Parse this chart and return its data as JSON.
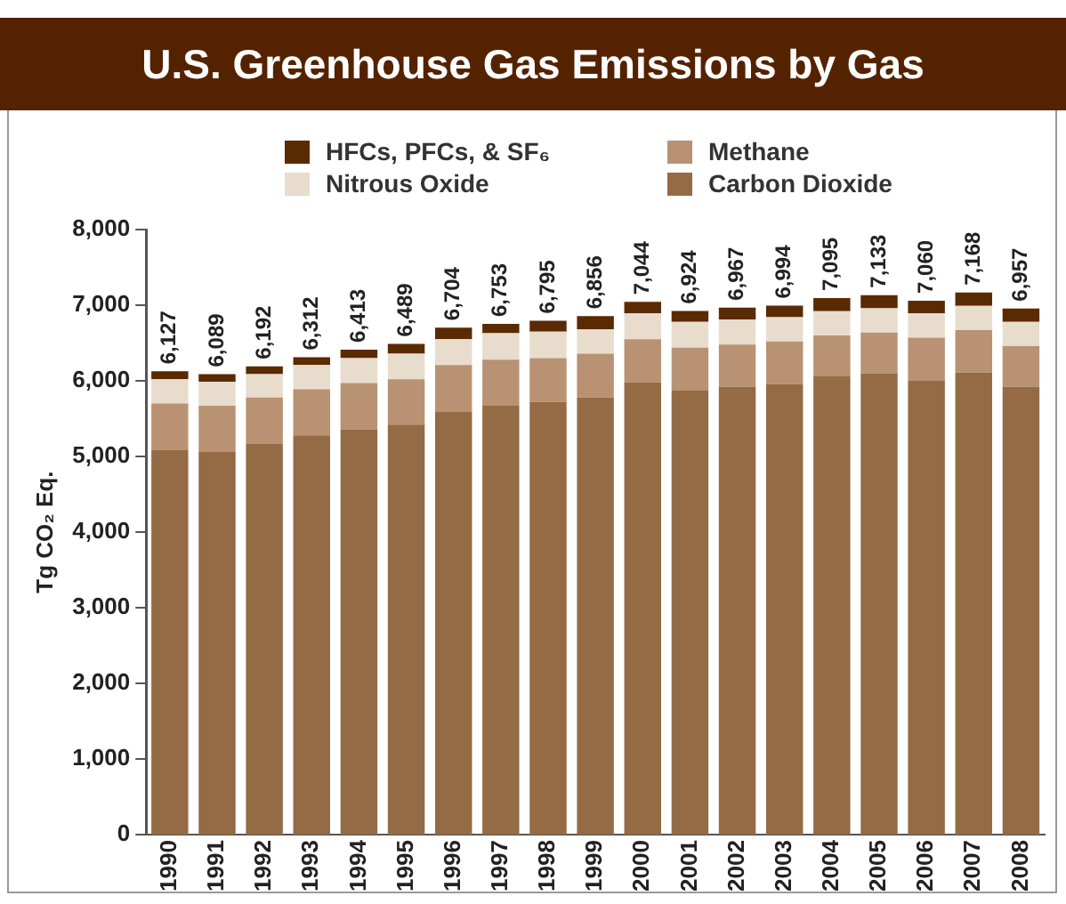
{
  "chart_data": {
    "type": "bar",
    "stacked": true,
    "title": "U.S. Greenhouse Gas Emissions by Gas",
    "ylabel": "Tg CO₂ Eq.",
    "categories": [
      "1990",
      "1991",
      "1992",
      "1993",
      "1994",
      "1995",
      "1996",
      "1997",
      "1998",
      "1999",
      "2000",
      "2001",
      "2002",
      "2003",
      "2004",
      "2005",
      "2006",
      "2007",
      "2008"
    ],
    "series": [
      {
        "name": "Carbon Dioxide",
        "color": "#946b45",
        "values": [
          5090,
          5060,
          5170,
          5280,
          5360,
          5420,
          5590,
          5670,
          5720,
          5780,
          5980,
          5870,
          5920,
          5960,
          6060,
          6100,
          6000,
          6110,
          5920
        ]
      },
      {
        "name": "Methane",
        "color": "#b89272",
        "values": [
          610,
          610,
          610,
          610,
          610,
          600,
          620,
          610,
          580,
          580,
          570,
          570,
          560,
          560,
          540,
          540,
          570,
          560,
          540
        ]
      },
      {
        "name": "Nitrous Oxide",
        "color": "#e8dccd",
        "values": [
          320,
          320,
          310,
          320,
          330,
          340,
          340,
          350,
          350,
          320,
          340,
          340,
          330,
          320,
          320,
          320,
          320,
          320,
          320
        ]
      },
      {
        "name": "HFCs, PFCs, & SF₆",
        "color": "#5a2a00",
        "values": [
          107,
          99,
          102,
          102,
          113,
          129,
          154,
          123,
          145,
          176,
          154,
          144,
          157,
          154,
          175,
          173,
          170,
          178,
          177
        ]
      }
    ],
    "totals": [
      "6,127",
      "6,089",
      "6,192",
      "6,312",
      "6,413",
      "6,489",
      "6,704",
      "6,753",
      "6,795",
      "6,856",
      "7,044",
      "6,924",
      "6,967",
      "6,994",
      "7,095",
      "7,133",
      "7,060",
      "7,168",
      "6,957"
    ],
    "ylim": [
      0,
      8000
    ],
    "yticks": [
      0,
      {
        "value": 1000,
        "label": "1,000"
      },
      {
        "value": 2000,
        "label": "2,000"
      },
      {
        "value": 3000,
        "label": "3,000"
      },
      {
        "value": 4000,
        "label": "4,000"
      },
      {
        "value": 5000,
        "label": "5,000"
      },
      {
        "value": 6000,
        "label": "6,000"
      },
      {
        "value": 7000,
        "label": "7,000"
      },
      {
        "value": 8000,
        "label": "8,000"
      }
    ],
    "grid": false,
    "legend": "top"
  }
}
